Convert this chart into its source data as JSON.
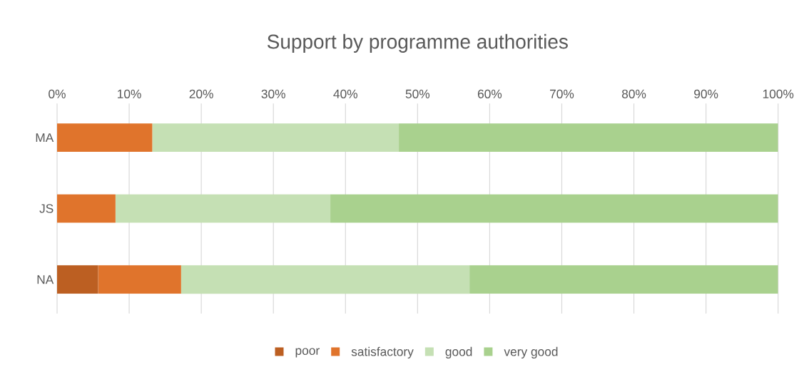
{
  "chart_data": {
    "type": "bar",
    "orientation": "horizontal",
    "stacked": true,
    "title": "Support by programme authorities",
    "categories": [
      "MA",
      "JS",
      "NA"
    ],
    "series": [
      {
        "name": "poor",
        "color": "#bc5f22",
        "values": [
          0,
          0,
          5.7
        ]
      },
      {
        "name": "satisfactory",
        "color": "#e0742c",
        "values": [
          13.2,
          8.1,
          11.5
        ]
      },
      {
        "name": "good",
        "color": "#c5e0b4",
        "values": [
          34.2,
          29.8,
          40.0
        ]
      },
      {
        "name": "very good",
        "color": "#a9d18e",
        "values": [
          52.6,
          62.1,
          42.8
        ]
      }
    ],
    "xlim": [
      0,
      100
    ],
    "xticks": [
      {
        "value": 0,
        "label": "0%"
      },
      {
        "value": 10,
        "label": "10%"
      },
      {
        "value": 20,
        "label": "20%"
      },
      {
        "value": 30,
        "label": "30%"
      },
      {
        "value": 40,
        "label": "40%"
      },
      {
        "value": 50,
        "label": "50%"
      },
      {
        "value": 60,
        "label": "60%"
      },
      {
        "value": 70,
        "label": "70%"
      },
      {
        "value": 80,
        "label": "80%"
      },
      {
        "value": 90,
        "label": "90%"
      },
      {
        "value": 100,
        "label": "100%"
      }
    ],
    "grid": "x",
    "legend": "bottom"
  }
}
